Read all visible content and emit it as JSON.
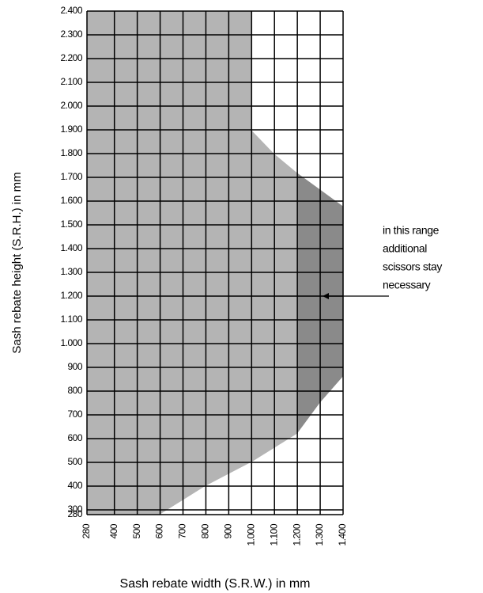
{
  "chart_data": {
    "type": "area",
    "xlabel": "Sash rebate width (S.R.W.) in mm",
    "ylabel": "Sash rebate height (S.R.H.) in mm",
    "xlim": [
      280,
      1400
    ],
    "ylim": [
      280,
      2400
    ],
    "xticks": [
      280,
      400,
      500,
      600,
      700,
      800,
      900,
      {
        "value": 1000,
        "label": "1.000"
      },
      {
        "value": 1100,
        "label": "1.100"
      },
      {
        "value": 1200,
        "label": "1.200"
      },
      {
        "value": 1300,
        "label": "1.300"
      },
      {
        "value": 1400,
        "label": "1.400"
      }
    ],
    "yticks": [
      280,
      300,
      400,
      500,
      600,
      700,
      800,
      900,
      {
        "value": 1000,
        "label": "1.000"
      },
      {
        "value": 1100,
        "label": "1.100"
      },
      {
        "value": 1200,
        "label": "1.200"
      },
      {
        "value": 1300,
        "label": "1.300"
      },
      {
        "value": 1400,
        "label": "1.400"
      },
      {
        "value": 1500,
        "label": "1.500"
      },
      {
        "value": 1600,
        "label": "1.600"
      },
      {
        "value": 1700,
        "label": "1.700"
      },
      {
        "value": 1800,
        "label": "1.800"
      },
      {
        "value": 1900,
        "label": "1.900"
      },
      {
        "value": 2000,
        "label": "2.000"
      },
      {
        "value": 2100,
        "label": "2.100"
      },
      {
        "value": 2200,
        "label": "2.200"
      },
      {
        "value": 2300,
        "label": "2.300"
      },
      {
        "value": 2400,
        "label": "2.400"
      }
    ],
    "grid": true,
    "color": "#b4b4b4",
    "series": [
      {
        "x": [
          280,
          1000,
          1000,
          1100,
          1200,
          1300,
          1400
        ],
        "values": [
          2400,
          2400,
          1900,
          1800,
          1720,
          1650,
          1580
        ]
      },
      {
        "x": [
          280,
          600,
          700,
          800,
          900,
          1000,
          1100,
          1200,
          1300,
          1400
        ],
        "values": [
          280,
          280,
          340,
          400,
          450,
          500,
          560,
          620,
          750,
          860
        ]
      }
    ],
    "highlight_xlim": [
      1200,
      1400
    ],
    "highlight_color": "#8a8a8a",
    "annotation": {
      "lines": [
        "in this range",
        "additional",
        "scissors stay",
        "necessary"
      ],
      "x": 1400,
      "y": 1200
    }
  }
}
